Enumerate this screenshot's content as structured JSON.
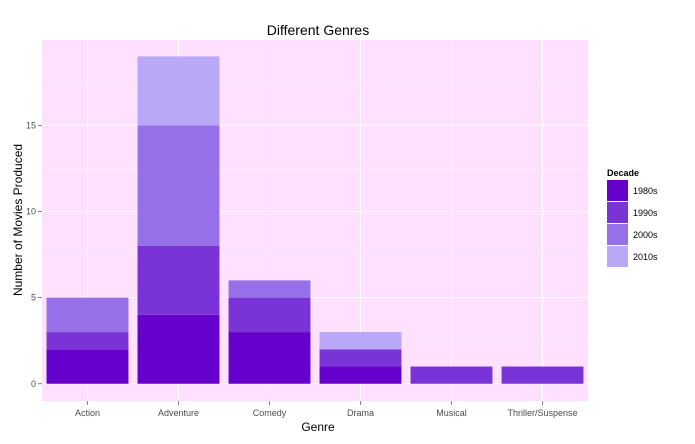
{
  "chart_data": {
    "type": "bar",
    "stacked": true,
    "title": "Different Genres",
    "xlabel": "Genre",
    "ylabel": "Number of Movies Produced",
    "categories": [
      "Action",
      "Adventure",
      "Comedy",
      "Drama",
      "Musical",
      "Thriller/Suspense"
    ],
    "series": [
      {
        "name": "1980s",
        "color": "#6600cc",
        "values": [
          2,
          4,
          3,
          1,
          0,
          0
        ]
      },
      {
        "name": "1990s",
        "color": "#7a33d6",
        "values": [
          1,
          4,
          2,
          1,
          1,
          1
        ]
      },
      {
        "name": "2000s",
        "color": "#9670e8",
        "values": [
          2,
          7,
          1,
          0,
          0,
          0
        ]
      },
      {
        "name": "2010s",
        "color": "#b8a8f5",
        "values": [
          0,
          4,
          0,
          1,
          0,
          0
        ]
      }
    ],
    "ylim": [
      -1,
      19.95
    ],
    "yticks": [
      0,
      5,
      10,
      15
    ],
    "grid": true,
    "panel_background": "#ffe0ff",
    "legend": {
      "title": "Decade",
      "position": "right"
    }
  }
}
